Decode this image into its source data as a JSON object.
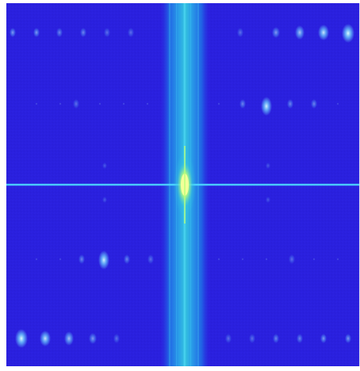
{
  "image": {
    "kind": "2D Fourier magnitude spectrum",
    "colormap": "jet",
    "colors": {
      "background": "#2a20de",
      "background_dark": "#2018cc",
      "band_outer": "#1f6fe6",
      "band_inner": "#2aa7e8",
      "band_core": "#35c4df",
      "hline": "#4dd8ff",
      "center_glow": "#b8ff7a",
      "center_core": "#f4ff9a",
      "peak": "#dffcff",
      "peak_soft": "#6fd3ff",
      "frame": "#d9d9ef",
      "page": "#ffffff"
    }
  }
}
